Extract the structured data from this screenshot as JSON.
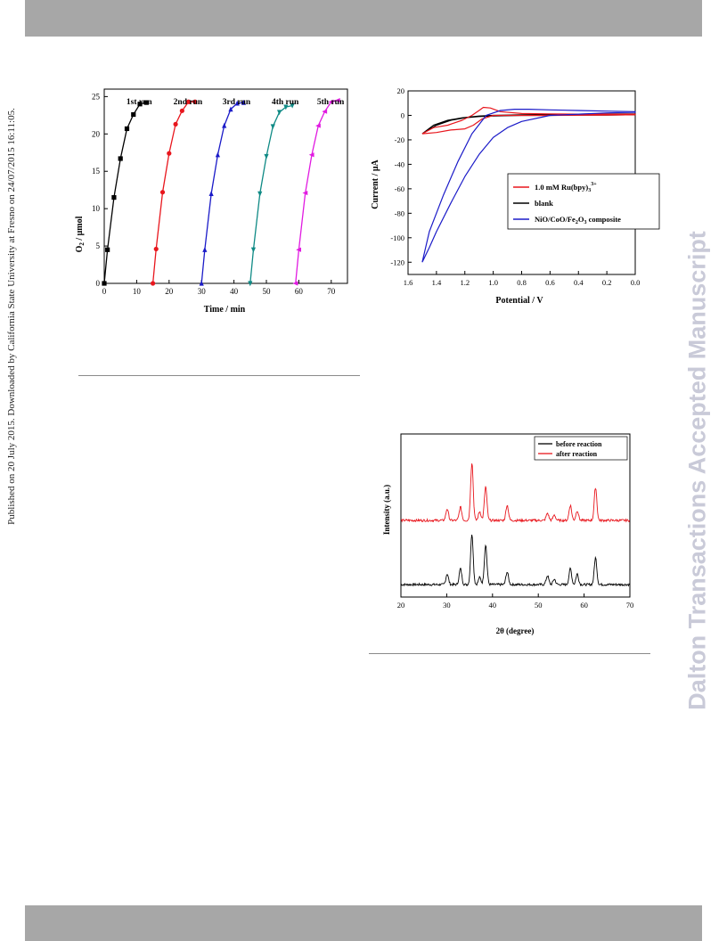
{
  "page": {
    "side_note": "Published on 20 July 2015. Downloaded by California State University at Fresno on 24/07/2015 16:11:05.",
    "watermark": "Dalton Transactions Accepted Manuscript"
  },
  "chart_data": [
    {
      "type": "line",
      "xlabel": "Time / min",
      "ylabel": "O2 / μmol",
      "xlim": [
        0,
        75
      ],
      "ylim": [
        0,
        26
      ],
      "xticks": [
        0,
        10,
        20,
        30,
        40,
        50,
        60,
        70
      ],
      "yticks": [
        0,
        5,
        10,
        15,
        20,
        25
      ],
      "series": [
        {
          "name": "1st run",
          "color": "#000000",
          "marker": "square",
          "x": [
            0,
            1,
            3,
            5,
            7,
            9,
            11,
            13
          ],
          "y": [
            0,
            4.5,
            11.5,
            16.7,
            20.7,
            22.6,
            24.0,
            24.2
          ]
        },
        {
          "name": "2nd run",
          "color": "#e8161d",
          "marker": "circle",
          "x": [
            15,
            16,
            18,
            20,
            22,
            24,
            26,
            28
          ],
          "y": [
            0,
            4.6,
            12.2,
            17.4,
            21.3,
            23.1,
            24.3,
            24.3
          ]
        },
        {
          "name": "3rd run",
          "color": "#1b1bc8",
          "marker": "triangle-up",
          "x": [
            30,
            31,
            33,
            35,
            37,
            39,
            41,
            43
          ],
          "y": [
            0,
            4.5,
            12.0,
            17.2,
            21.1,
            23.3,
            24.1,
            24.2
          ]
        },
        {
          "name": "4th run",
          "color": "#0f8a85",
          "marker": "triangle-down",
          "x": [
            45,
            46,
            48,
            50,
            52,
            54,
            56,
            58
          ],
          "y": [
            0,
            4.5,
            12.0,
            17.0,
            21.0,
            22.9,
            23.6,
            23.8
          ]
        },
        {
          "name": "5th run",
          "color": "#e11ae1",
          "marker": "triangle-left",
          "x": [
            59,
            60,
            62,
            64,
            66,
            68,
            70,
            72
          ],
          "y": [
            0,
            4.5,
            12.1,
            17.2,
            21.1,
            23.0,
            24.3,
            24.5
          ]
        }
      ]
    },
    {
      "type": "line",
      "xlabel": "Potential / V",
      "ylabel": "Current / μA",
      "xlim": [
        1.6,
        0.0
      ],
      "ylim": [
        -130,
        20
      ],
      "xticks": [
        1.6,
        1.4,
        1.2,
        1.0,
        0.8,
        0.6,
        0.4,
        0.2,
        0.0
      ],
      "xticklabels": [
        "1.6",
        "1.4",
        "1.2",
        "1.0",
        "0.8",
        "0.6",
        "0.4",
        "0.2",
        "0.0"
      ],
      "yticks": [
        20,
        0,
        -20,
        -40,
        -60,
        -80,
        -100,
        -120
      ],
      "legend": {
        "position": "right",
        "entries": [
          {
            "label": "1.0 mM Ru(bpy)",
            "sub": "3",
            "sup": "3+",
            "color": "#e8161d"
          },
          {
            "label": "blank",
            "color": "#000000"
          },
          {
            "label": "NiO/CoO/Fe",
            "sub": "2",
            "label2": "O",
            "sub2": "3",
            "label3": " composite",
            "color": "#1b1bc8"
          }
        ]
      },
      "series": [
        {
          "name": "1.0 mM Ru(bpy)3 3+",
          "color": "#e8161d",
          "x": [
            1.5,
            1.42,
            1.32,
            1.22,
            1.15,
            1.1,
            1.07,
            1.02,
            0.95,
            0.8,
            0.6,
            0.4,
            0.2,
            0.0,
            0.0,
            0.2,
            0.4,
            0.6,
            0.8,
            0.9,
            1.0,
            1.08,
            1.14,
            1.2,
            1.3,
            1.4,
            1.5
          ],
          "y": [
            -15,
            -10,
            -8,
            -4,
            0,
            4,
            6.5,
            6,
            3,
            1.5,
            1.2,
            1.0,
            1.0,
            1.0,
            0.5,
            0.2,
            0.1,
            0.0,
            0.0,
            0.0,
            0.0,
            -3,
            -8,
            -11,
            -12,
            -14,
            -15
          ]
        },
        {
          "name": "blank",
          "color": "#000000",
          "x": [
            1.5,
            1.42,
            1.32,
            1.22,
            1.1,
            1.0,
            0.8,
            0.6,
            0.4,
            0.2,
            0.0,
            0.0,
            0.2,
            0.4,
            0.6,
            0.8,
            1.0,
            1.1,
            1.2,
            1.3,
            1.4,
            1.5
          ],
          "y": [
            -15,
            -8,
            -4,
            -2,
            -0.5,
            0,
            0.5,
            0.8,
            1.0,
            1.2,
            1.2,
            0.5,
            0.3,
            0.2,
            0.0,
            0.0,
            -0.5,
            -1,
            -2,
            -4,
            -8,
            -15
          ]
        },
        {
          "name": "NiO/CoO/Fe2O3 composite",
          "color": "#1b1bc8",
          "x": [
            1.5,
            1.45,
            1.35,
            1.25,
            1.15,
            1.05,
            0.95,
            0.85,
            0.75,
            0.6,
            0.4,
            0.2,
            0.0,
            0.0,
            0.2,
            0.4,
            0.6,
            0.8,
            0.9,
            1.0,
            1.1,
            1.2,
            1.3,
            1.4,
            1.45,
            1.5
          ],
          "y": [
            -120,
            -95,
            -65,
            -38,
            -15,
            0,
            4,
            5,
            5,
            4.5,
            4,
            3.5,
            3,
            2.5,
            2,
            1,
            0,
            -5,
            -10,
            -18,
            -32,
            -50,
            -72,
            -95,
            -108,
            -120
          ]
        }
      ]
    },
    {
      "type": "line",
      "xlabel": "2θ (degree)",
      "ylabel": "Intensity (a.u.)",
      "xlim": [
        20,
        70
      ],
      "xticks": [
        20,
        30,
        40,
        50,
        60,
        70
      ],
      "legend": {
        "position": "top-right",
        "entries": [
          {
            "label": "before reaction",
            "color": "#000000"
          },
          {
            "label": "after reaction",
            "color": "#e8161d"
          }
        ]
      },
      "peaks_2theta": [
        30.1,
        33.0,
        35.5,
        37.2,
        38.5,
        43.2,
        52.0,
        53.5,
        57.0,
        58.5,
        62.5
      ],
      "series": [
        {
          "name": "before reaction",
          "color": "#000000",
          "peak_heights": [
            12,
            18,
            57,
            8,
            45,
            14,
            10,
            6,
            18,
            12,
            30
          ]
        },
        {
          "name": "after reaction",
          "color": "#e8161d",
          "peak_heights": [
            13,
            15,
            65,
            10,
            38,
            17,
            8,
            6,
            17,
            11,
            37
          ]
        }
      ]
    }
  ]
}
